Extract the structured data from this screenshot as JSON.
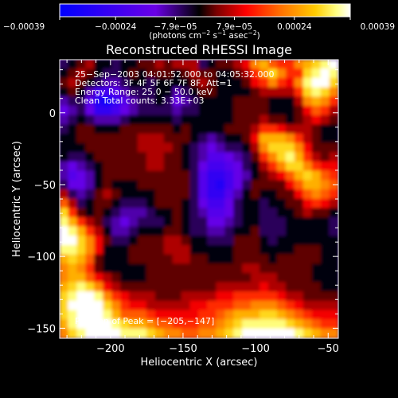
{
  "chart_data": {
    "type": "heatmap",
    "title": "Reconstructed RHESSI Image",
    "xlabel": "Heliocentric X (arcsec)",
    "ylabel": "Heliocentric Y (arcsec)",
    "xlim": [
      -235,
      -43
    ],
    "ylim": [
      -157,
      37
    ],
    "x_ticks": [
      -200,
      -150,
      -100,
      -50
    ],
    "x_tick_labels": [
      "−200",
      "−150",
      "−100",
      "−50"
    ],
    "y_ticks": [
      0,
      -50,
      -100,
      -150
    ],
    "y_tick_labels": [
      "0",
      "−50",
      "−100",
      "−150"
    ],
    "colorbar": {
      "range": [
        -0.00039,
        0.00039
      ],
      "ticks": [
        -0.00039,
        -0.00024,
        -7.9e-05,
        7.9e-05,
        0.00024,
        0.00039
      ],
      "tick_labels": [
        "−0.00039",
        "−0.00024",
        "−7.9e−05",
        "7.9e−05",
        "0.00024",
        "0.00039"
      ],
      "units_parts": [
        "(photons cm",
        "−2",
        " s",
        "−1",
        " asec",
        "−2",
        ")"
      ]
    },
    "annotations": [
      "25−Sep−2003 04:01:52.000 to 04:05:32.000",
      "Detectors: 3F 4F 5F 6F 7F 8F, Att=1",
      "Energy Range: 25.0 − 50.0 keV",
      "Clean    Total counts: 3.33E+03"
    ],
    "peak_label": "Position of Peak = [−205,−147]",
    "peak_position": [
      -205,
      -147
    ],
    "grid": false,
    "image_rows": [
      "IJKLJJIJJKKLKLLLIJKKLMPQONNPQRST",
      "JKLKJIIJKJKKKJKLKKJJKLNPRPNNRSTS",
      "KLKJIHHIJJIJJJJKLKJJJKMNPNMPSTTR",
      "JKJHEEFHIIIJJHIJKKJJJJKLLLLNRSRP",
      "HIIFCBDFHIIJIGHIJJJJKKKKJJJLPQPN",
      "GHIGDDEGHIIIIHIIJJJJKKKKJJJKMONL",
      "HIJIHHHIJJJJJIJJJJJJKKKLKKJKLMLK",
      "IJKKJJJKKKKKKJKJJJJKKKLNNMLLLKJJ",
      "JJKKKKKKKLLLKKKJIHIJJKMQQQPNLKJJ",
      "JJJKKKKKKLLLLKJIHGHIIJLPRRRPMKKK",
      "JIIJKKKKKKLLKKJIHFFGHIKNPRSQNLKL",
      "HGHIJKKKKKLLKKJIGEEFGIJLNPRRPNMM",
      "HFGHJKKKKKKKKKKIFDDEGHJKLMOQRQON",
      "IGGHJKJJJKKKKKKIFDCEGIKKKKMOQQPO",
      "LIHIKLKJJJJKKKKIFDDFHJKJJKKMOPON",
      "OLIJKKJIIIJKKKJIGEEGIJJIJJKKMNML",
      "RNKJKJIHHHIJJKJIHFFGIJJIIJJKLKKJ",
      "SQNLKIHGHIIIJKJIIGGHIJJIIIJJJJJI",
      "TSQNLJHHIJJJKKJIIHHIJJKIIIJJJJJI",
      "TTRPMKIIJKKKLLKJJIIIKKKJIJJJJJJJ",
      "SSRPMJJJKKKKLLLJJJJJKKKJJJJKKKJJ",
      "QRQOKJJJKKKKKLLKKJJJKKKKJKKKKKJJ",
      "PQPNKJJJJJKKKKKKKKKKKLLKKKKKKJJJ",
      "PQQOMLKJJJKKKKKKKKKKKKLLLKKKKJJJ",
      "QRSRPMLKKKKKKKKKKKLLLLLMLLKKKKJJ",
      "RSTTSPNMLLLKKKLLLLMMNNNNNMLLKKKK",
      "RTTTTRPNMMLLLLLMMNNNOOPPPONMLLLL",
      "RSTTTSQOOONMMMMMNNOPQQQRRQPONMMM",
      "QSTTTTSRQQPOONNNOOPQRSSSSSRQPONN",
      "PRSTTTTSSSRQPPOOPPQRSTTTTTTSRQPP"
    ]
  }
}
